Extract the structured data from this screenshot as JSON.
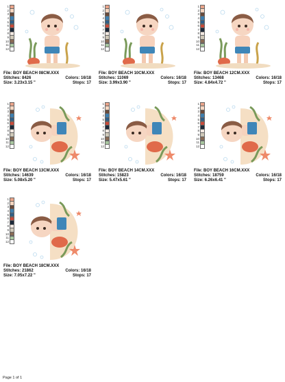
{
  "palette": {
    "numbers": [
      "1",
      "2",
      "3",
      "4",
      "5",
      "6",
      "7",
      "8",
      "9",
      "10",
      "11",
      "12"
    ],
    "colors": [
      "#e9a48a",
      "#f7d6c0",
      "#6b4a3a",
      "#3f7fae",
      "#2f5f88",
      "#c94a3a",
      "#1e2a3a",
      "#f3e9e2",
      "#cfc8b8",
      "#8a6b55",
      "#a8c7a0",
      "#ffffff"
    ]
  },
  "labels": {
    "file": "File:",
    "stitches": "Stitches:",
    "size": "Size:",
    "colors": "Colors:",
    "stops": "Stops:"
  },
  "designs": [
    {
      "file": "BOY BEACH 08CM.XXX",
      "stitches": "8426",
      "size": "3.23x3.15 \"",
      "colors": "16/18",
      "stops": "17",
      "variant": "standing"
    },
    {
      "file": "BOY BEACH 10CM.XXX",
      "stitches": "11069",
      "size": "3.99x3.90 \"",
      "colors": "16/18",
      "stops": "17",
      "variant": "standing"
    },
    {
      "file": "BOY BEACH 12CM.XXX",
      "stitches": "13468",
      "size": "4.84x4.72 \"",
      "colors": "16/18",
      "stops": "17",
      "variant": "standing"
    },
    {
      "file": "BOY BEACH 13CM.XXX",
      "stitches": "14639",
      "size": "5.08x5.20 \"",
      "colors": "16/18",
      "stops": "17",
      "variant": "sideways"
    },
    {
      "file": "BOY BEACH 14CM.XXX",
      "stitches": "15823",
      "size": "5.47x5.61 \"",
      "colors": "16/18",
      "stops": "17",
      "variant": "sideways"
    },
    {
      "file": "BOY BEACH 16CM.XXX",
      "stitches": "18759",
      "size": "6.26x6.41 \"",
      "colors": "16/18",
      "stops": "17",
      "variant": "sideways"
    },
    {
      "file": "BOY BEACH 18CM.XXX",
      "stitches": "21862",
      "size": "7.05x7.22 \"",
      "colors": "16/18",
      "stops": "17",
      "variant": "sideways"
    }
  ],
  "footer": "Page 1 of 1"
}
